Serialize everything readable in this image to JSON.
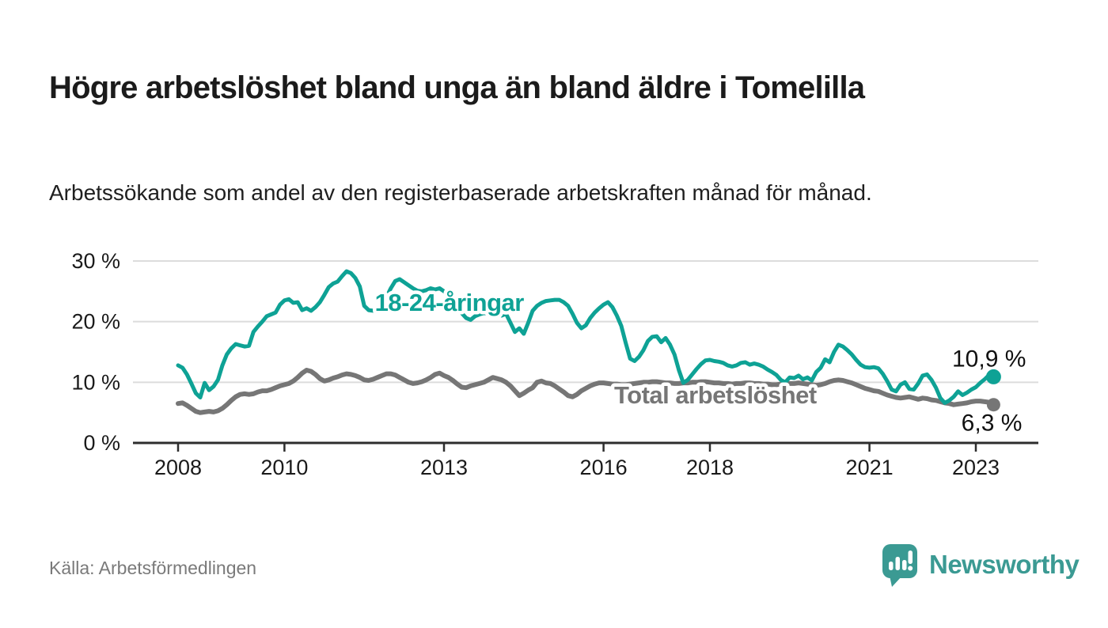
{
  "header": {
    "title": "Högre arbetslöshet bland unga än bland äldre i Tomelilla",
    "subtitle": "Arbetssökande som andel av den registerbaserade arbetskraften månad för månad."
  },
  "footer": {
    "source": "Källa: Arbetsförmedlingen",
    "brand_name": "Newsworthy",
    "brand_icon": "newsworthy-speech-bubble-bar-chart-icon"
  },
  "colors": {
    "young_line": "#0ea295",
    "total_line": "#767676",
    "grid": "#dcdcdc",
    "axis": "#2d2d2d",
    "tick_text": "#1a1a1a",
    "value_label_text": "#111111",
    "source_text": "#7a7a7a",
    "brand_teal": "#3b9a93",
    "halo": "#ffffff"
  },
  "chart_data": {
    "type": "line",
    "unit": "percent",
    "frequency": "monthly",
    "start": "2008-01",
    "end": "2023-05",
    "ylim": [
      0,
      32
    ],
    "grid": "horizontal",
    "x_ticks": [
      2008,
      2010,
      2013,
      2016,
      2018,
      2021,
      2023
    ],
    "y_ticks": {
      "values": [
        0,
        10,
        20,
        30
      ],
      "labels": [
        "0 %",
        "10 %",
        "20 %",
        "30 %"
      ]
    },
    "series": [
      {
        "name": "Total arbetslöshet",
        "color": "#767676",
        "end_label": "6,3 %",
        "end_value": 6.3,
        "label_at": {
          "t": 2016.2,
          "v": 6.5
        },
        "values": [
          6.5,
          6.6,
          6.2,
          5.7,
          5.2,
          5.0,
          5.1,
          5.2,
          5.1,
          5.3,
          5.7,
          6.3,
          7.0,
          7.6,
          8.0,
          8.1,
          8.0,
          8.1,
          8.4,
          8.6,
          8.6,
          8.8,
          9.1,
          9.4,
          9.6,
          9.8,
          10.2,
          10.8,
          11.5,
          12.0,
          11.8,
          11.3,
          10.6,
          10.2,
          10.4,
          10.7,
          10.9,
          11.2,
          11.4,
          11.3,
          11.1,
          10.8,
          10.4,
          10.3,
          10.5,
          10.8,
          11.1,
          11.4,
          11.4,
          11.2,
          10.8,
          10.4,
          10.0,
          9.8,
          9.9,
          10.1,
          10.4,
          10.8,
          11.3,
          11.5,
          11.1,
          10.8,
          10.3,
          9.7,
          9.2,
          9.1,
          9.4,
          9.6,
          9.8,
          10.0,
          10.4,
          10.8,
          10.6,
          10.4,
          10.0,
          9.4,
          8.6,
          7.8,
          8.2,
          8.7,
          9.1,
          10.0,
          10.2,
          9.9,
          9.8,
          9.4,
          8.9,
          8.4,
          7.8,
          7.6,
          8.0,
          8.6,
          9.0,
          9.4,
          9.7,
          9.9,
          9.9,
          9.8,
          9.7,
          9.7,
          9.6,
          9.6,
          9.7,
          9.8,
          9.9,
          10.0,
          10.0,
          10.1,
          10.1,
          10.0,
          9.9,
          9.9,
          9.8,
          9.8,
          9.9,
          9.9,
          10.0,
          10.0,
          10.1,
          10.1,
          10.0,
          9.9,
          9.9,
          9.8,
          9.8,
          9.7,
          9.8,
          9.8,
          9.9,
          9.9,
          9.8,
          9.8,
          9.7,
          9.7,
          9.6,
          9.6,
          9.7,
          9.7,
          9.8,
          9.8,
          9.9,
          9.8,
          9.7,
          9.6,
          9.5,
          9.6,
          9.8,
          10.1,
          10.3,
          10.4,
          10.3,
          10.1,
          9.9,
          9.6,
          9.3,
          9.0,
          8.8,
          8.6,
          8.5,
          8.2,
          7.9,
          7.7,
          7.5,
          7.4,
          7.5,
          7.6,
          7.4,
          7.2,
          7.4,
          7.3,
          7.1,
          7.0,
          6.8,
          6.6,
          6.5,
          6.3,
          6.4,
          6.5,
          6.6,
          6.8,
          6.9,
          6.9,
          6.8,
          6.7,
          6.3
        ]
      },
      {
        "name": "18-24-åringar",
        "color": "#0ea295",
        "end_label": "10,9 %",
        "end_value": 10.9,
        "label_at": {
          "t": 2011.7,
          "v": 21.8
        },
        "values": [
          12.8,
          12.4,
          11.3,
          9.8,
          8.2,
          7.5,
          9.9,
          8.7,
          9.3,
          10.4,
          12.8,
          14.6,
          15.6,
          16.3,
          16.1,
          15.9,
          16.0,
          18.3,
          19.2,
          20.0,
          20.9,
          21.2,
          21.5,
          22.8,
          23.5,
          23.7,
          23.1,
          23.2,
          21.9,
          22.2,
          21.8,
          22.4,
          23.2,
          24.4,
          25.7,
          26.3,
          26.6,
          27.5,
          28.3,
          28.0,
          27.2,
          25.8,
          22.6,
          21.9,
          21.8,
          22.0,
          22.8,
          24.0,
          25.5,
          26.7,
          27.0,
          26.5,
          26.0,
          25.5,
          25.1,
          25.0,
          25.2,
          25.5,
          25.3,
          25.5,
          25.0,
          24.4,
          23.5,
          22.4,
          21.4,
          20.6,
          20.3,
          20.9,
          21.2,
          21.4,
          21.3,
          21.4,
          21.4,
          21.0,
          21.3,
          19.8,
          18.3,
          18.9,
          18.0,
          19.8,
          21.8,
          22.6,
          23.1,
          23.4,
          23.5,
          23.6,
          23.6,
          23.2,
          22.6,
          21.3,
          19.8,
          18.9,
          19.4,
          20.6,
          21.5,
          22.2,
          22.8,
          23.2,
          22.4,
          21.0,
          19.3,
          16.5,
          13.9,
          13.5,
          14.2,
          15.3,
          16.8,
          17.5,
          17.6,
          16.6,
          17.3,
          16.2,
          14.6,
          12.0,
          9.9,
          10.4,
          11.3,
          12.2,
          13.0,
          13.6,
          13.7,
          13.5,
          13.4,
          13.2,
          12.8,
          12.6,
          12.8,
          13.2,
          13.3,
          12.9,
          13.1,
          12.9,
          12.6,
          12.1,
          11.7,
          11.2,
          10.4,
          10.0,
          10.8,
          10.7,
          11.1,
          10.5,
          10.8,
          10.3,
          11.7,
          12.4,
          13.8,
          13.3,
          15.0,
          16.2,
          15.9,
          15.3,
          14.6,
          13.7,
          12.9,
          12.5,
          12.4,
          12.5,
          12.3,
          11.4,
          10.2,
          8.8,
          8.5,
          9.6,
          10.0,
          8.9,
          8.8,
          9.8,
          11.1,
          11.3,
          10.4,
          9.1,
          7.4,
          6.6,
          7.0,
          7.6,
          8.5,
          7.9,
          8.3,
          8.8,
          9.2,
          9.9,
          10.5,
          11.2,
          10.9
        ]
      }
    ]
  }
}
